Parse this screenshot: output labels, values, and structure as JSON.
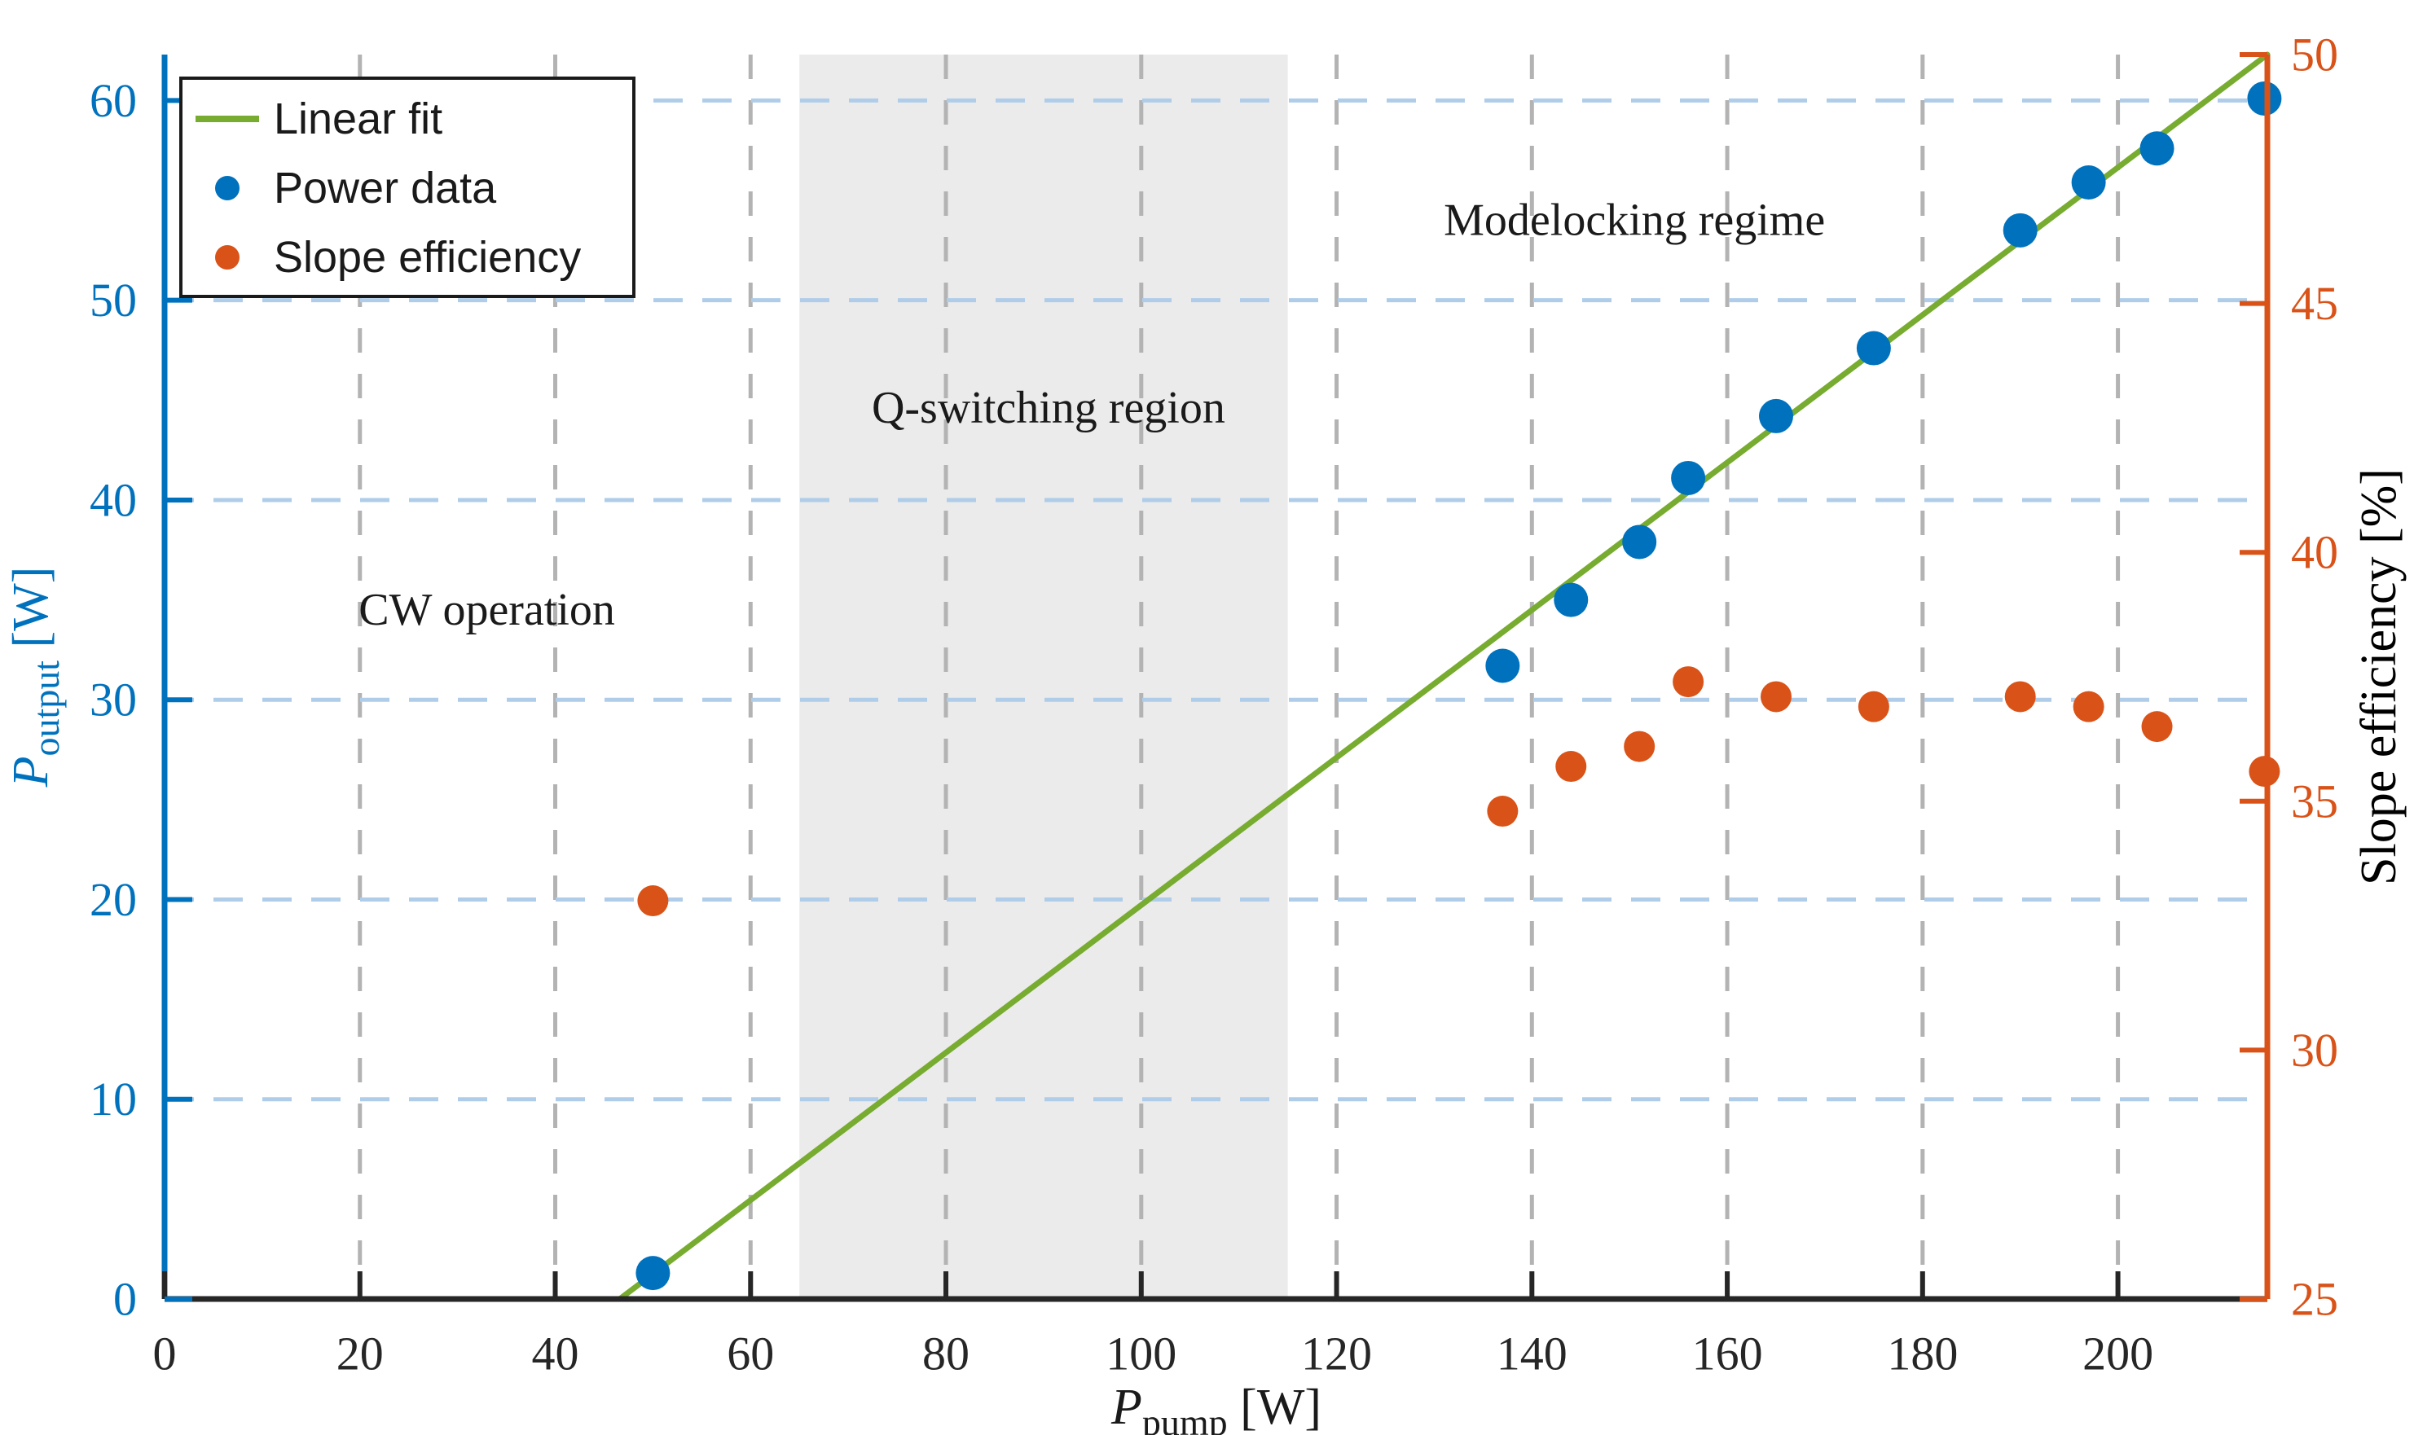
{
  "figure": {
    "colors": {
      "blue": "#0072BD",
      "orange": "#D95319",
      "green": "#77AC30",
      "grid_x": "#B3B3B3",
      "grid_y": "#AFCDE9",
      "band": "#EBEBEB",
      "axis_dark": "#262626",
      "text": "#1A1A1A",
      "legend_border": "#1A1A1A",
      "background": "#FFFFFF"
    }
  },
  "chart_data": {
    "type": "scatter",
    "title": "",
    "xlabel": {
      "base": "P",
      "sub": "pump",
      "unit": " [W]"
    },
    "ylabel_left": {
      "base": "P",
      "sub": "output",
      "unit": " [W]"
    },
    "ylabel_right": "Slope efficiency [%]",
    "xlim": [
      0,
      215.3
    ],
    "ylim_left": [
      0,
      62.3
    ],
    "ylim_right": [
      25,
      50
    ],
    "xticks": [
      0,
      20,
      40,
      60,
      80,
      100,
      120,
      140,
      160,
      180,
      200
    ],
    "yticks_left": [
      0,
      10,
      20,
      30,
      40,
      50,
      60
    ],
    "yticks_right": [
      25,
      30,
      35,
      40,
      45,
      50
    ],
    "grid": "on",
    "band": {
      "name": "q-switching-band",
      "x0": 65,
      "x1": 115,
      "color": "#EBEBEB"
    },
    "series": [
      {
        "name": "Linear fit",
        "type": "line",
        "axis": "left",
        "color": "#77AC30",
        "points": [
          [
            46.6,
            0
          ],
          [
            215.3,
            62.3
          ]
        ]
      },
      {
        "name": "Power data",
        "type": "scatter",
        "axis": "left",
        "color": "#0072BD",
        "x": [
          50,
          137,
          144,
          151,
          156,
          165,
          175,
          190,
          197,
          204,
          215
        ],
        "y": [
          1.3,
          31.7,
          35.0,
          37.9,
          41.1,
          44.2,
          47.6,
          53.5,
          55.9,
          57.6,
          60.1
        ]
      },
      {
        "name": "Slope efficiency",
        "type": "scatter",
        "axis": "right",
        "color": "#D95319",
        "x": [
          50,
          137,
          144,
          151,
          156,
          165,
          175,
          190,
          197,
          204,
          215
        ],
        "y": [
          33.0,
          34.8,
          35.7,
          36.1,
          37.4,
          37.1,
          36.9,
          37.1,
          36.9,
          36.5,
          35.6
        ]
      }
    ],
    "annotations": [
      {
        "text": "CW operation",
        "x": 33,
        "y": 34.5
      },
      {
        "text": "Q-switching region",
        "x": 90.5,
        "y": 44.6
      },
      {
        "text": "Modelocking regime",
        "x": 150.5,
        "y": 54
      }
    ],
    "legend": {
      "position": "top-left",
      "items": [
        {
          "swatch": "line",
          "color": "#77AC30",
          "label": "Linear fit"
        },
        {
          "swatch": "dot",
          "color": "#0072BD",
          "label": "Power data"
        },
        {
          "swatch": "dot",
          "color": "#D95319",
          "label": "Slope efficiency"
        }
      ]
    }
  }
}
